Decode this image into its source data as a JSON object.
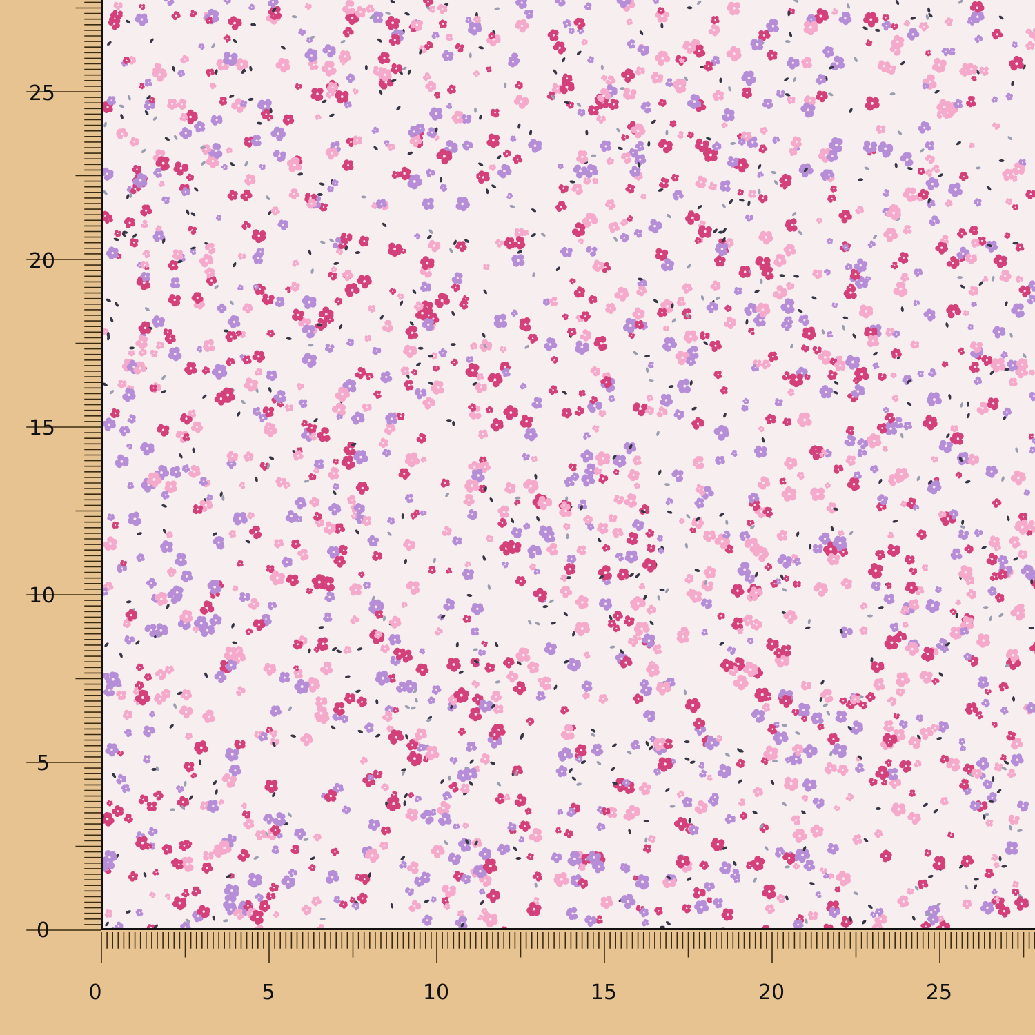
{
  "image": {
    "subject": "floral-print-fabric",
    "colors": {
      "background": "#e6c390",
      "fabric": "#f7eef0",
      "flower_magenta": "#d3407a",
      "flower_pink": "#f5aacb",
      "flower_lavender": "#b68ed8",
      "leaf_grey": "#9b9db0",
      "leaf_dark": "#363645"
    }
  },
  "ruler": {
    "x_labels": [
      "0",
      "5",
      "10",
      "15",
      "20",
      "25"
    ],
    "y_labels": [
      "0",
      "5",
      "10",
      "15",
      "20",
      "25"
    ]
  }
}
